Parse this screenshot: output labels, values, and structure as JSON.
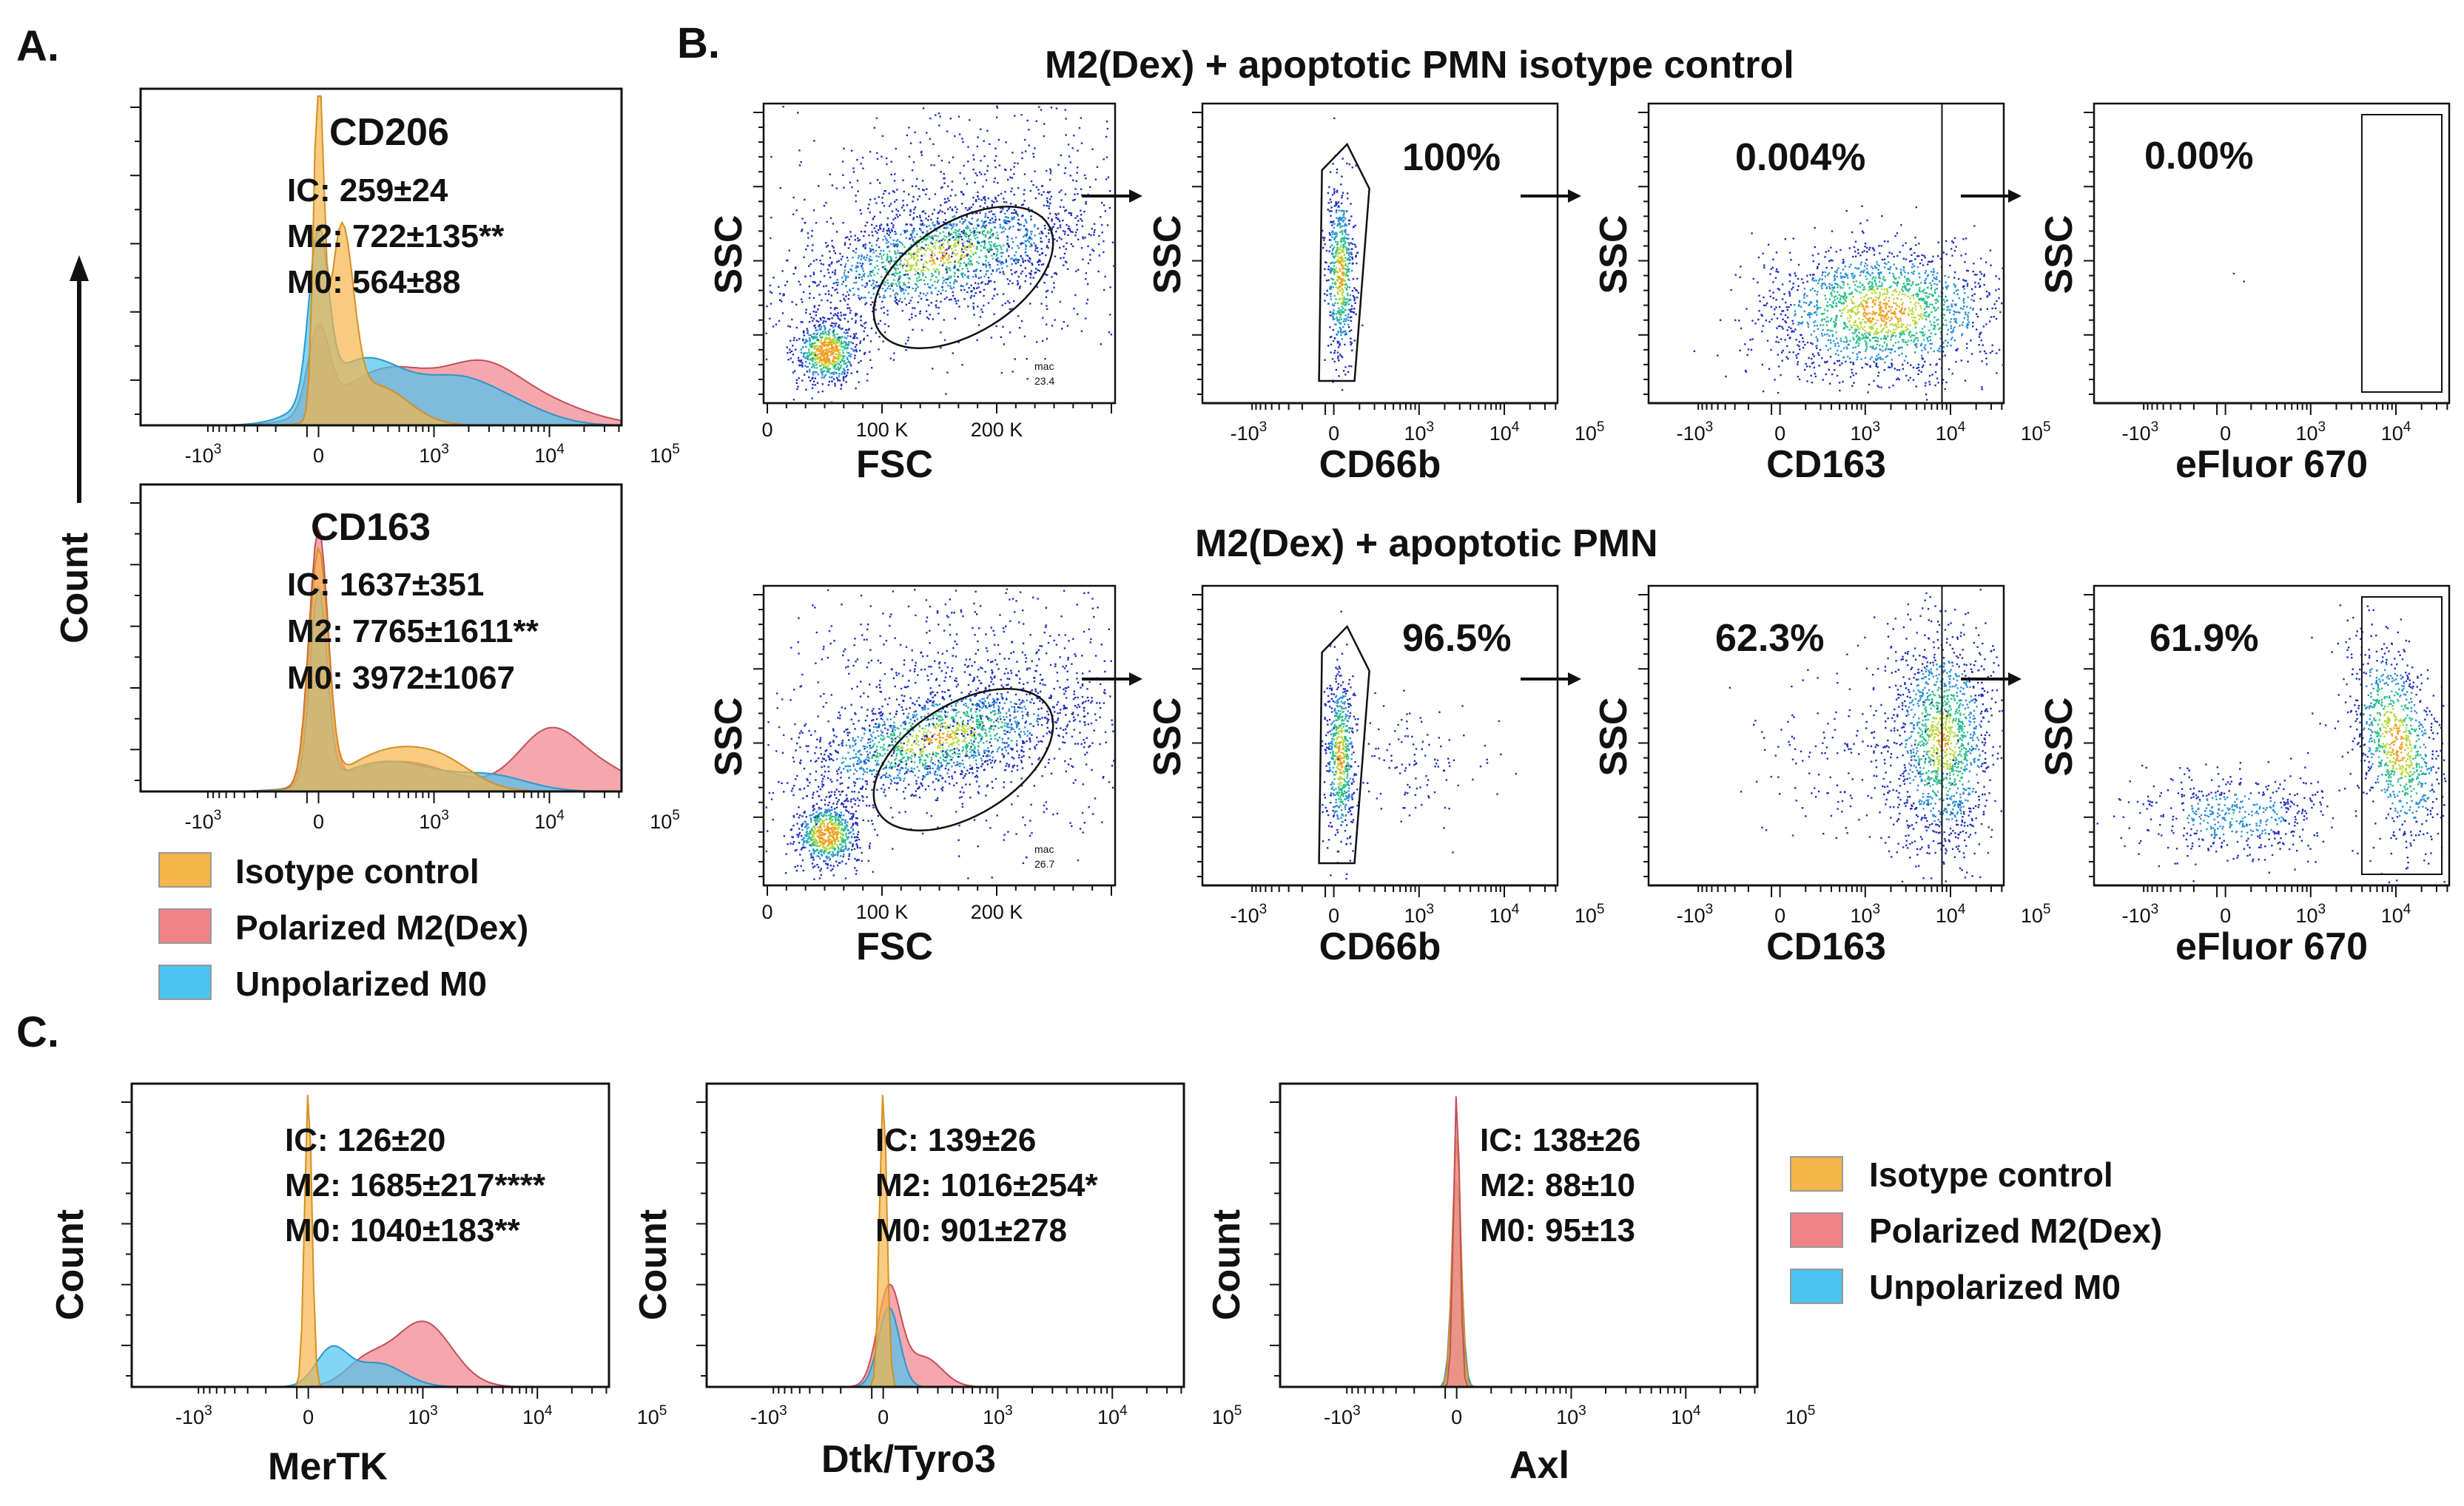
{
  "panels": {
    "a": "A.",
    "b": "B.",
    "c": "C."
  },
  "count_label": "Count",
  "log_ticks": {
    "base": "10",
    "neg_exp": "3",
    "zero": "0",
    "exps": [
      "3",
      "4",
      "5"
    ]
  },
  "fsc_ticks": [
    "0",
    "100 K",
    "200 K"
  ],
  "legend": [
    {
      "label": "Isotype control",
      "color": "#f5b54a"
    },
    {
      "label": "Polarized M2(Dex)",
      "color": "#f1828a"
    },
    {
      "label": "Unpolarized M0",
      "color": "#4cc3f0"
    }
  ],
  "gating_rows": [
    {
      "title": "M2(Dex) + apoptotic PMN isotype control",
      "gate_label": "mac",
      "gate_value": "23.4",
      "cd66b_pct": "100%",
      "cd163_pct": "0.004%",
      "efluor_pct": "0.00%"
    },
    {
      "title": "M2(Dex) + apoptotic PMN",
      "gate_label": "mac",
      "gate_value": "26.7",
      "cd66b_pct": "96.5%",
      "cd163_pct": "62.3%",
      "efluor_pct": "61.9%"
    }
  ],
  "gating_axes": {
    "ssc": "SSC",
    "fsc": "FSC",
    "cd66b": "CD66b",
    "cd163": "CD163",
    "efluor": "eFluor 670"
  },
  "chart_data": [
    {
      "type": "area",
      "title": "CD206",
      "xlabel": "",
      "ylabel": "Count",
      "xscale": "biexponential",
      "stats": [
        "IC: 259±24",
        "M2: 722±135**",
        "M0: 564±88"
      ],
      "series": [
        {
          "name": "Isotype control",
          "mode_log10": 0.2
        },
        {
          "name": "Polarized M2(Dex)",
          "mode_log10": 3.4
        },
        {
          "name": "Unpolarized M0",
          "mode_log10": 2.6
        }
      ]
    },
    {
      "type": "area",
      "title": "CD163",
      "xlabel": "",
      "ylabel": "Count",
      "xscale": "biexponential",
      "stats": [
        "IC: 1637±351",
        "M2: 7765±1611**",
        "M0: 3972±1067"
      ],
      "series": [
        {
          "name": "Isotype control",
          "mode_log10": 0.0
        },
        {
          "name": "Polarized M2(Dex)",
          "mode_log10": 4.2
        },
        {
          "name": "Unpolarized M0",
          "mode_log10": 0.0
        }
      ]
    },
    {
      "type": "area",
      "title": "",
      "xlabel": "MerTK",
      "ylabel": "Count",
      "xscale": "biexponential",
      "stats": [
        "IC: 126±20",
        "M2: 1685±217****",
        "M0: 1040±183**"
      ],
      "series": [
        {
          "name": "Isotype control",
          "mode_log10": 0.0
        },
        {
          "name": "Polarized M2(Dex)",
          "mode_log10": 2.9
        },
        {
          "name": "Unpolarized M0",
          "mode_log10": 2.2
        }
      ]
    },
    {
      "type": "area",
      "title": "",
      "xlabel": "Dtk/Tyro3",
      "ylabel": "Count",
      "xscale": "biexponential",
      "stats": [
        "IC: 139±26",
        "M2: 1016±254*",
        "M0: 901±278"
      ],
      "series": [
        {
          "name": "Isotype control",
          "mode_log10": 0.0
        },
        {
          "name": "Polarized M2(Dex)",
          "mode_log10": 1.5
        },
        {
          "name": "Unpolarized M0",
          "mode_log10": 1.3
        }
      ]
    },
    {
      "type": "area",
      "title": "",
      "xlabel": "Axl",
      "ylabel": "Count",
      "xscale": "biexponential",
      "stats": [
        "IC: 138±26",
        "M2: 88±10",
        "M0: 95±13"
      ],
      "series": [
        {
          "name": "Isotype control",
          "mode_log10": 0.0
        },
        {
          "name": "Polarized M2(Dex)",
          "mode_log10": 0.0
        },
        {
          "name": "Unpolarized M0",
          "mode_log10": 0.0
        }
      ]
    }
  ]
}
